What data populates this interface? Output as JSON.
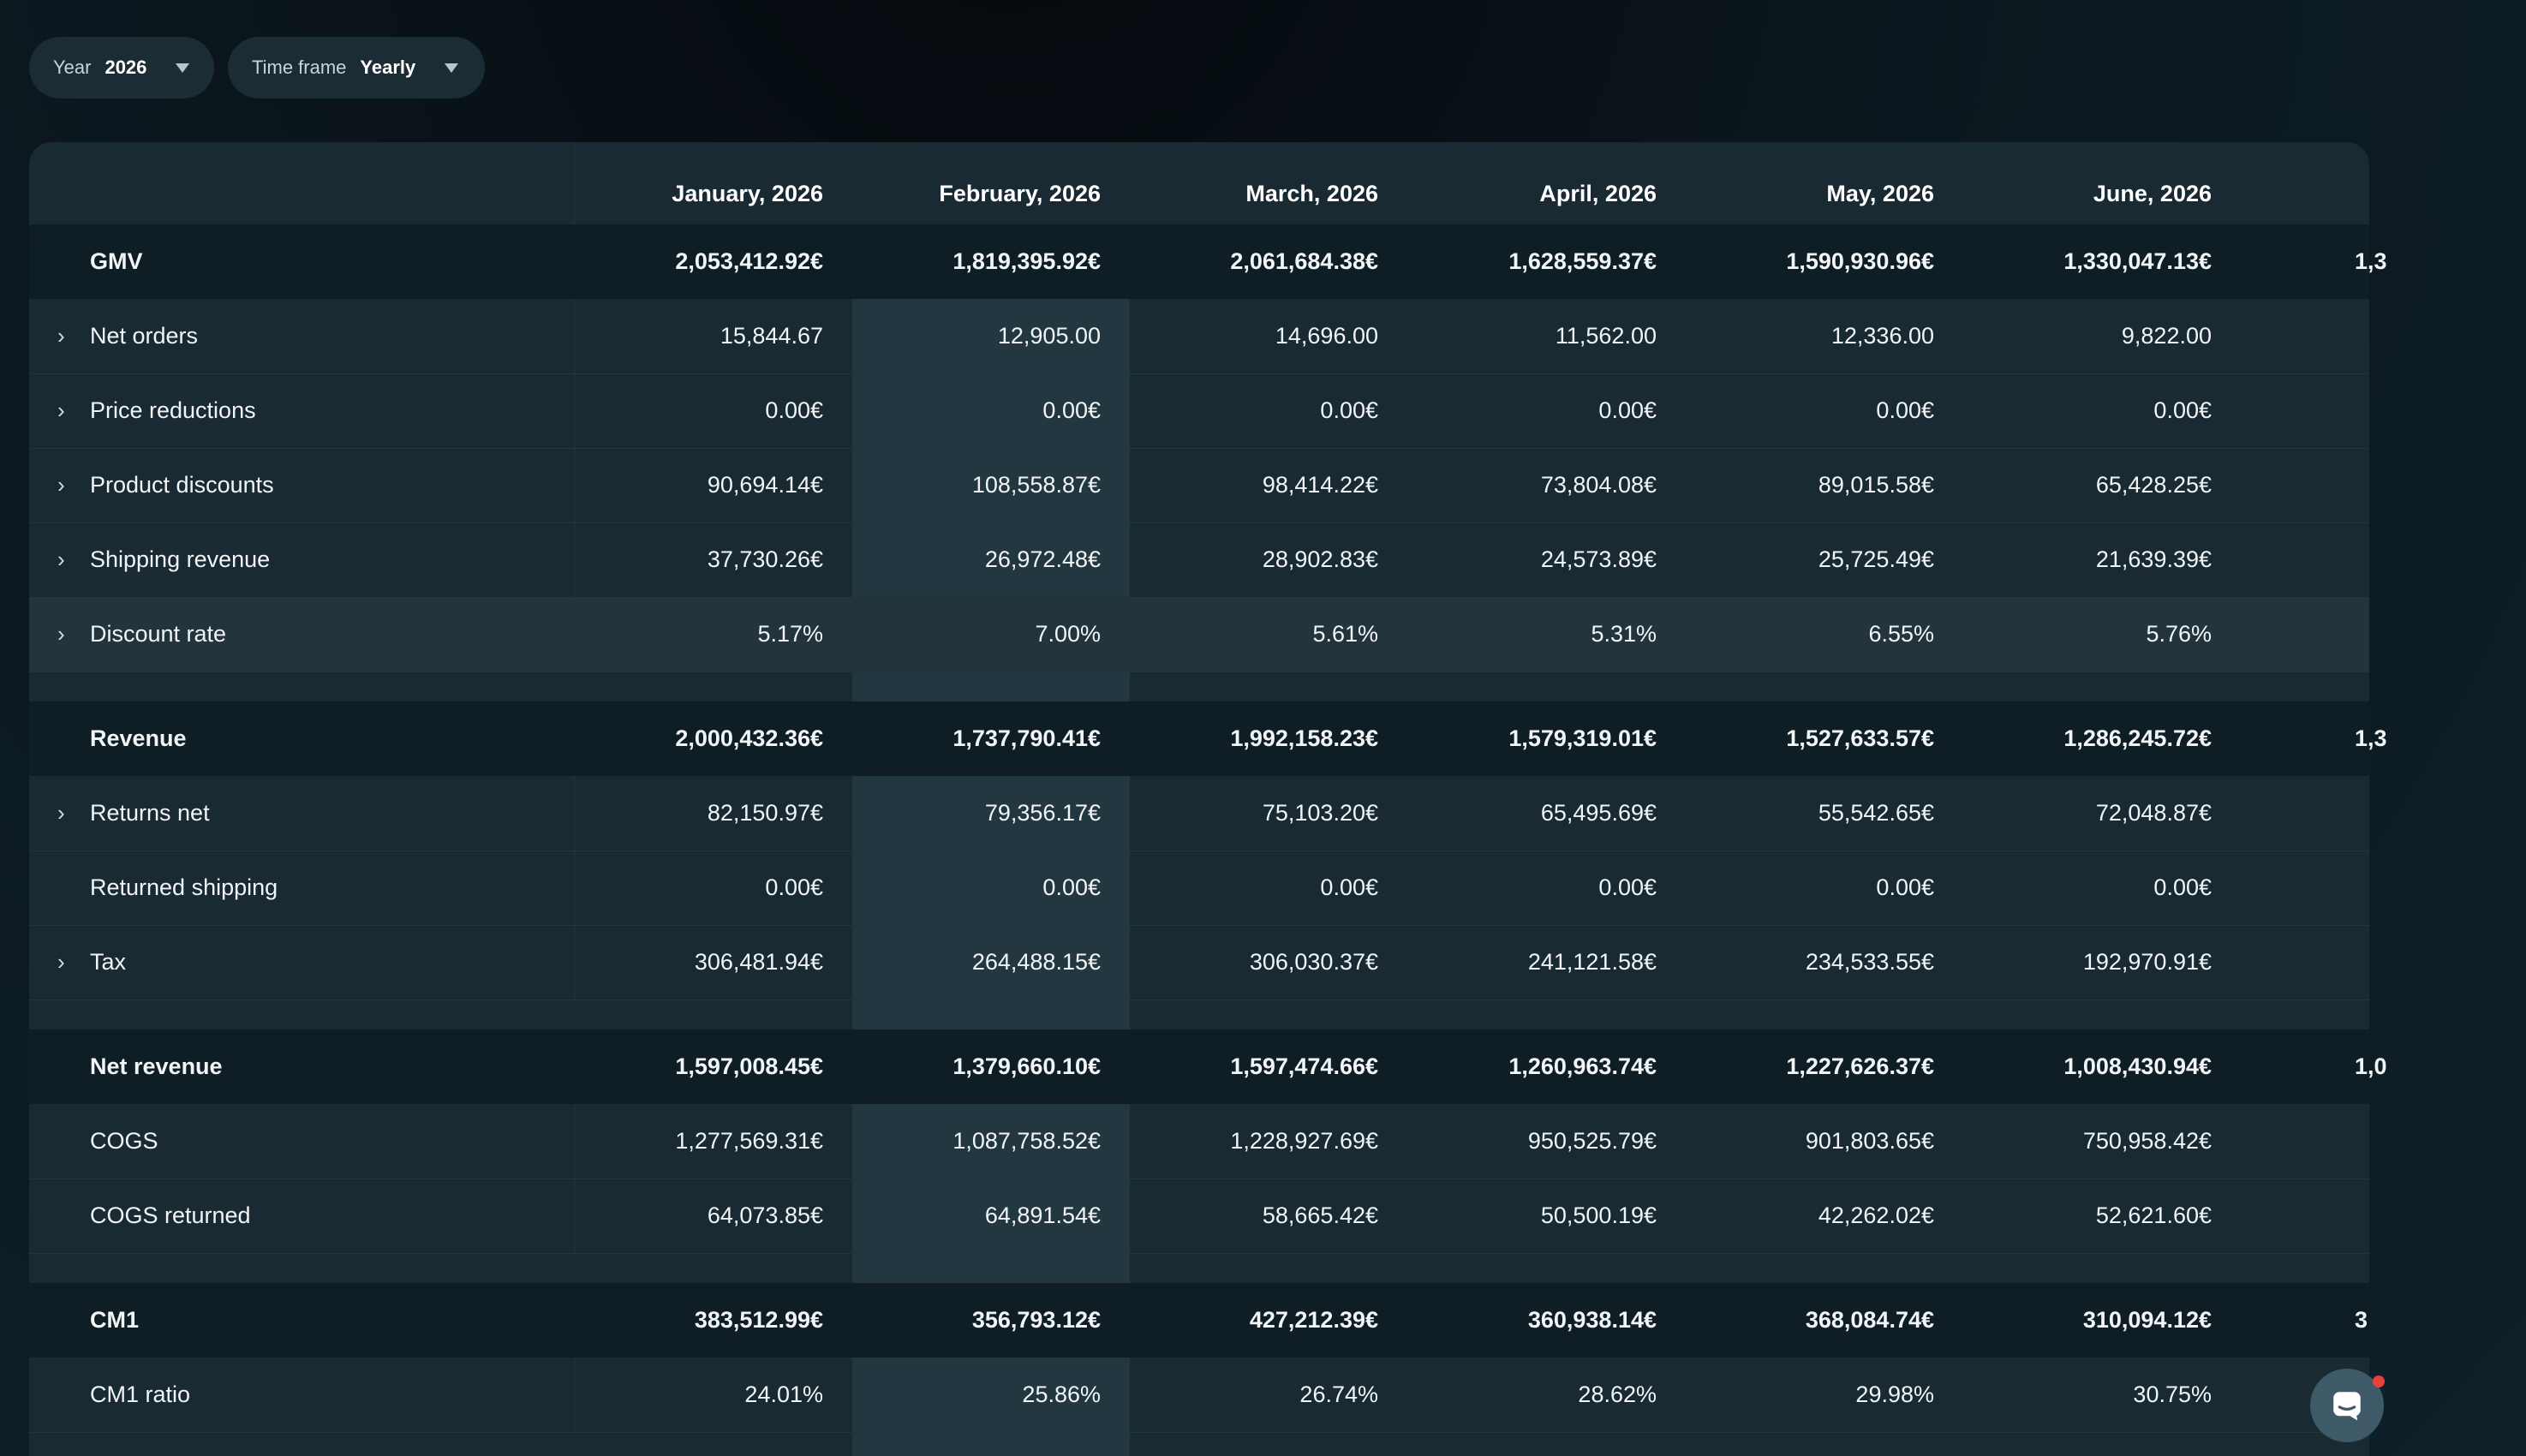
{
  "filters": {
    "year_label": "Year",
    "year_value": "2026",
    "timeframe_label": "Time frame",
    "timeframe_value": "Yearly"
  },
  "columns": [
    "January, 2026",
    "February, 2026",
    "March, 2026",
    "April, 2026",
    "May, 2026",
    "June, 2026"
  ],
  "rows": [
    {
      "label": "GMV",
      "bold": true,
      "values": [
        "2,053,412.92€",
        "1,819,395.92€",
        "2,061,684.38€",
        "1,628,559.37€",
        "1,590,930.96€",
        "1,330,047.13€"
      ],
      "partial": "1,3"
    },
    {
      "label": "Net orders",
      "chevron": true,
      "values": [
        "15,844.67",
        "12,905.00",
        "14,696.00",
        "11,562.00",
        "12,336.00",
        "9,822.00"
      ]
    },
    {
      "label": "Price reductions",
      "chevron": true,
      "values": [
        "0.00€",
        "0.00€",
        "0.00€",
        "0.00€",
        "0.00€",
        "0.00€"
      ]
    },
    {
      "label": "Product discounts",
      "chevron": true,
      "values": [
        "90,694.14€",
        "108,558.87€",
        "98,414.22€",
        "73,804.08€",
        "89,015.58€",
        "65,428.25€"
      ]
    },
    {
      "label": "Shipping revenue",
      "chevron": true,
      "values": [
        "37,730.26€",
        "26,972.48€",
        "28,902.83€",
        "24,573.89€",
        "25,725.49€",
        "21,639.39€"
      ]
    },
    {
      "label": "Discount rate",
      "chevron": true,
      "hover": true,
      "values": [
        "5.17%",
        "7.00%",
        "5.61%",
        "5.31%",
        "6.55%",
        "5.76%"
      ]
    },
    {
      "spacer": true
    },
    {
      "label": "Revenue",
      "bold": true,
      "values": [
        "2,000,432.36€",
        "1,737,790.41€",
        "1,992,158.23€",
        "1,579,319.01€",
        "1,527,633.57€",
        "1,286,245.72€"
      ],
      "partial": "1,3"
    },
    {
      "label": "Returns net",
      "chevron": true,
      "values": [
        "82,150.97€",
        "79,356.17€",
        "75,103.20€",
        "65,495.69€",
        "55,542.65€",
        "72,048.87€"
      ]
    },
    {
      "label": "Returned shipping",
      "values": [
        "0.00€",
        "0.00€",
        "0.00€",
        "0.00€",
        "0.00€",
        "0.00€"
      ]
    },
    {
      "label": "Tax",
      "chevron": true,
      "values": [
        "306,481.94€",
        "264,488.15€",
        "306,030.37€",
        "241,121.58€",
        "234,533.55€",
        "192,970.91€"
      ]
    },
    {
      "spacer": true
    },
    {
      "label": "Net revenue",
      "bold": true,
      "values": [
        "1,597,008.45€",
        "1,379,660.10€",
        "1,597,474.66€",
        "1,260,963.74€",
        "1,227,626.37€",
        "1,008,430.94€"
      ],
      "partial": "1,0"
    },
    {
      "label": "COGS",
      "values": [
        "1,277,569.31€",
        "1,087,758.52€",
        "1,228,927.69€",
        "950,525.79€",
        "901,803.65€",
        "750,958.42€"
      ]
    },
    {
      "label": "COGS returned",
      "values": [
        "64,073.85€",
        "64,891.54€",
        "58,665.42€",
        "50,500.19€",
        "42,262.02€",
        "52,621.60€"
      ]
    },
    {
      "spacer": true
    },
    {
      "label": "CM1",
      "bold": true,
      "values": [
        "383,512.99€",
        "356,793.12€",
        "427,212.39€",
        "360,938.14€",
        "368,084.74€",
        "310,094.12€"
      ],
      "partial": "3"
    },
    {
      "label": "CM1 ratio",
      "values": [
        "24.01%",
        "25.86%",
        "26.74%",
        "28.62%",
        "29.98%",
        "30.75%"
      ]
    }
  ]
}
